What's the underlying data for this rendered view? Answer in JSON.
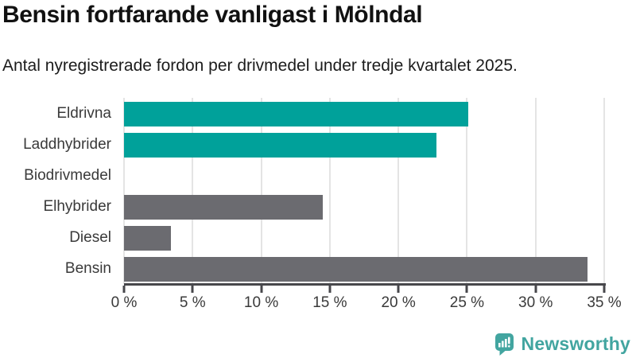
{
  "title": "Bensin fortfarande vanligast i Mölndal",
  "subtitle": "Antal nyregistrerade fordon per drivmedel under tredje kvartalet 2025.",
  "colors": {
    "teal": "#00a19a",
    "gray": "#6b6b70",
    "axis": "#47474b",
    "grid": "#e4e4e4",
    "brand": "#42a5a0"
  },
  "chart_data": {
    "type": "bar",
    "orientation": "horizontal",
    "title": "Bensin fortfarande vanligast i Mölndal",
    "subtitle": "Antal nyregistrerade fordon per drivmedel under tredje kvartalet 2025.",
    "categories": [
      "Eldrivna",
      "Laddhybrider",
      "Biodrivmedel",
      "Elhybrider",
      "Diesel",
      "Bensin"
    ],
    "values": [
      25.1,
      22.8,
      0,
      14.5,
      3.4,
      33.8
    ],
    "unit": "%",
    "bar_colors": [
      "#00a19a",
      "#00a19a",
      "#6b6b70",
      "#6b6b70",
      "#6b6b70",
      "#6b6b70"
    ],
    "xlim": [
      0,
      35
    ],
    "x_ticks": [
      0,
      5,
      10,
      15,
      20,
      25,
      30,
      35
    ],
    "x_tick_labels": [
      "0 %",
      "5 %",
      "10 %",
      "15 %",
      "20 %",
      "25 %",
      "30 %",
      "35 %"
    ],
    "grid": true,
    "legend": false
  },
  "footer": {
    "brand": "Newsworthy"
  }
}
